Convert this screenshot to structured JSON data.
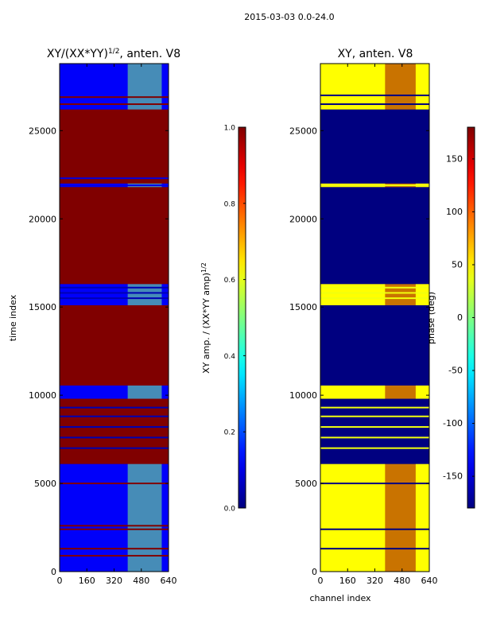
{
  "suptitle": "2015-03-03 0.0-24.0",
  "chart_data": [
    {
      "type": "heatmap",
      "title": "XY/(XX*YY)^1/2, anten. V8",
      "title_main": "XY/(XX*YY)",
      "title_sup": "1/2",
      "title_tail": ", anten. V8",
      "xlabel": "",
      "ylabel": "time index",
      "xlim": [
        0,
        640
      ],
      "ylim": [
        0,
        28800
      ],
      "xticks": [
        "0",
        "160",
        "320",
        "480",
        "640"
      ],
      "yticks": [
        "0",
        "5000",
        "10000",
        "15000",
        "20000",
        "25000"
      ],
      "colorbar": {
        "label_main": "XY amp. / (XX*YY amp)",
        "label_sup": "1/2",
        "range": [
          0.0,
          1.0
        ],
        "ticks": [
          "0.0",
          "0.2",
          "0.4",
          "0.6",
          "0.8",
          "1.0"
        ]
      },
      "background_value": 0.12,
      "bands": [
        {
          "y0": 6100,
          "y1": 9800,
          "value": 1.0
        },
        {
          "y0": 10550,
          "y1": 15100,
          "value": 1.0
        },
        {
          "y0": 16300,
          "y1": 21800,
          "value": 1.0
        },
        {
          "y0": 22000,
          "y1": 26200,
          "value": 1.0
        }
      ],
      "lines": [
        {
          "y": 5000,
          "value": 1.0
        },
        {
          "y": 2400,
          "value": 1.0
        },
        {
          "y": 2600,
          "value": 1.0
        },
        {
          "y": 1300,
          "value": 1.0
        },
        {
          "y": 900,
          "value": 1.0
        },
        {
          "y": 26500,
          "value": 1.0
        },
        {
          "y": 26900,
          "value": 1.0
        },
        {
          "y": 7000,
          "value": 0.05
        },
        {
          "y": 7600,
          "value": 0.05
        },
        {
          "y": 8200,
          "value": 0.05
        },
        {
          "y": 8800,
          "value": 0.05
        },
        {
          "y": 9300,
          "value": 0.05
        },
        {
          "y": 15500,
          "value": 0.05
        },
        {
          "y": 15800,
          "value": 0.05
        },
        {
          "y": 16100,
          "value": 0.05
        },
        {
          "y": 21900,
          "value": 0.1
        },
        {
          "y": 22300,
          "value": 0.1
        }
      ],
      "rfi": {
        "x0": 400,
        "x1": 600,
        "value": 0.5
      }
    },
    {
      "type": "heatmap",
      "title": "XY, anten. V8",
      "xlabel": "channel index",
      "ylabel": "",
      "xlim": [
        0,
        640
      ],
      "ylim": [
        0,
        28800
      ],
      "xticks": [
        "0",
        "160",
        "320",
        "480",
        "640"
      ],
      "yticks": [
        "0",
        "5000",
        "10000",
        "15000",
        "20000",
        "25000"
      ],
      "colorbar": {
        "label": "phase (deg)",
        "range": [
          -180,
          180
        ],
        "ticks": [
          "-150",
          "-100",
          "-50",
          "0",
          "50",
          "100",
          "150"
        ]
      },
      "background_value": 45,
      "bands": [
        {
          "y0": 10550,
          "y1": 15100,
          "value": -180
        },
        {
          "y0": 16300,
          "y1": 21800,
          "value": -180
        },
        {
          "y0": 22000,
          "y1": 26200,
          "value": -180
        },
        {
          "y0": 6100,
          "y1": 9800,
          "value": -180
        }
      ],
      "lines": [
        {
          "y": 5000,
          "value": -180
        },
        {
          "y": 2400,
          "value": -180
        },
        {
          "y": 1300,
          "value": -180
        },
        {
          "y": 26500,
          "value": -180
        },
        {
          "y": 27000,
          "value": -180
        },
        {
          "y": 7000,
          "value": 40
        },
        {
          "y": 7600,
          "value": 40
        },
        {
          "y": 8200,
          "value": 40
        },
        {
          "y": 8800,
          "value": 40
        },
        {
          "y": 9300,
          "value": 40
        },
        {
          "y": 15500,
          "value": 40
        },
        {
          "y": 15800,
          "value": 40
        },
        {
          "y": 16100,
          "value": 40
        },
        {
          "y": 21900,
          "value": 40
        }
      ],
      "rfi": {
        "x0": 380,
        "x1": 560,
        "value": 170
      }
    }
  ]
}
